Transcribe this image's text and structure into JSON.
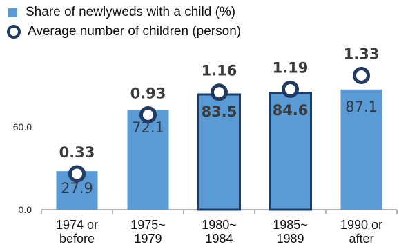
{
  "chart_data": {
    "type": "bar",
    "categories": [
      [
        "1974 or",
        "before"
      ],
      [
        "1975~",
        "1979"
      ],
      [
        "1980~",
        "1984"
      ],
      [
        "1985~",
        "1989"
      ],
      [
        "1990 or",
        "after"
      ]
    ],
    "series": [
      {
        "name": "Share of newlyweds with a child (%)",
        "type": "bar",
        "values": [
          27.9,
          72.1,
          83.5,
          84.6,
          87.1
        ],
        "labels": [
          "27.9",
          "72.1",
          "83.5",
          "84.6",
          "87.1"
        ],
        "highlighted": [
          false,
          false,
          true,
          true,
          false
        ]
      },
      {
        "name": "Average number of children (person)",
        "type": "marker",
        "values": [
          0.33,
          0.93,
          1.16,
          1.19,
          1.33
        ],
        "labels": [
          "0.33",
          "0.93",
          "1.16",
          "1.19",
          "1.33"
        ]
      }
    ],
    "y_ticks": [
      "0.0",
      "60.0"
    ],
    "ylim": [
      0,
      100
    ],
    "colors": {
      "bar": "#5b9bd5",
      "bar_highlight_border": "#1f3a63",
      "marker": "#1f3a63",
      "label_dark": "#3a3a3a",
      "label_light": "#2e3a46"
    },
    "legend_position": "top-left",
    "grid": false
  }
}
